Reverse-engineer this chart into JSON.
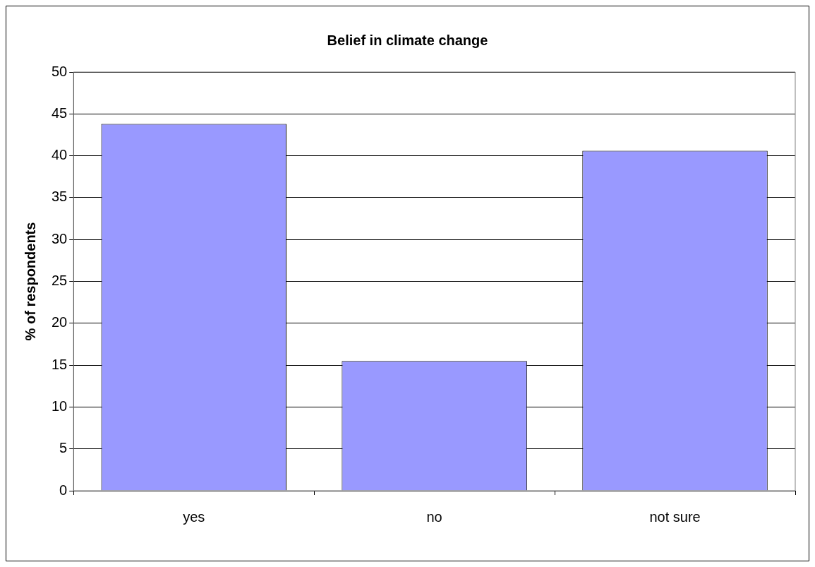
{
  "chart_data": {
    "type": "bar",
    "title": "Belief in climate change",
    "ylabel": "% of respondents",
    "categories": [
      "yes",
      "no",
      "not sure"
    ],
    "values": [
      43.8,
      15.5,
      40.6
    ],
    "color": "#9999ff",
    "ylim": [
      0,
      50
    ],
    "yticks": [
      0,
      5,
      10,
      15,
      20,
      25,
      30,
      35,
      40,
      45,
      50
    ],
    "grid": "y",
    "legend": false
  }
}
